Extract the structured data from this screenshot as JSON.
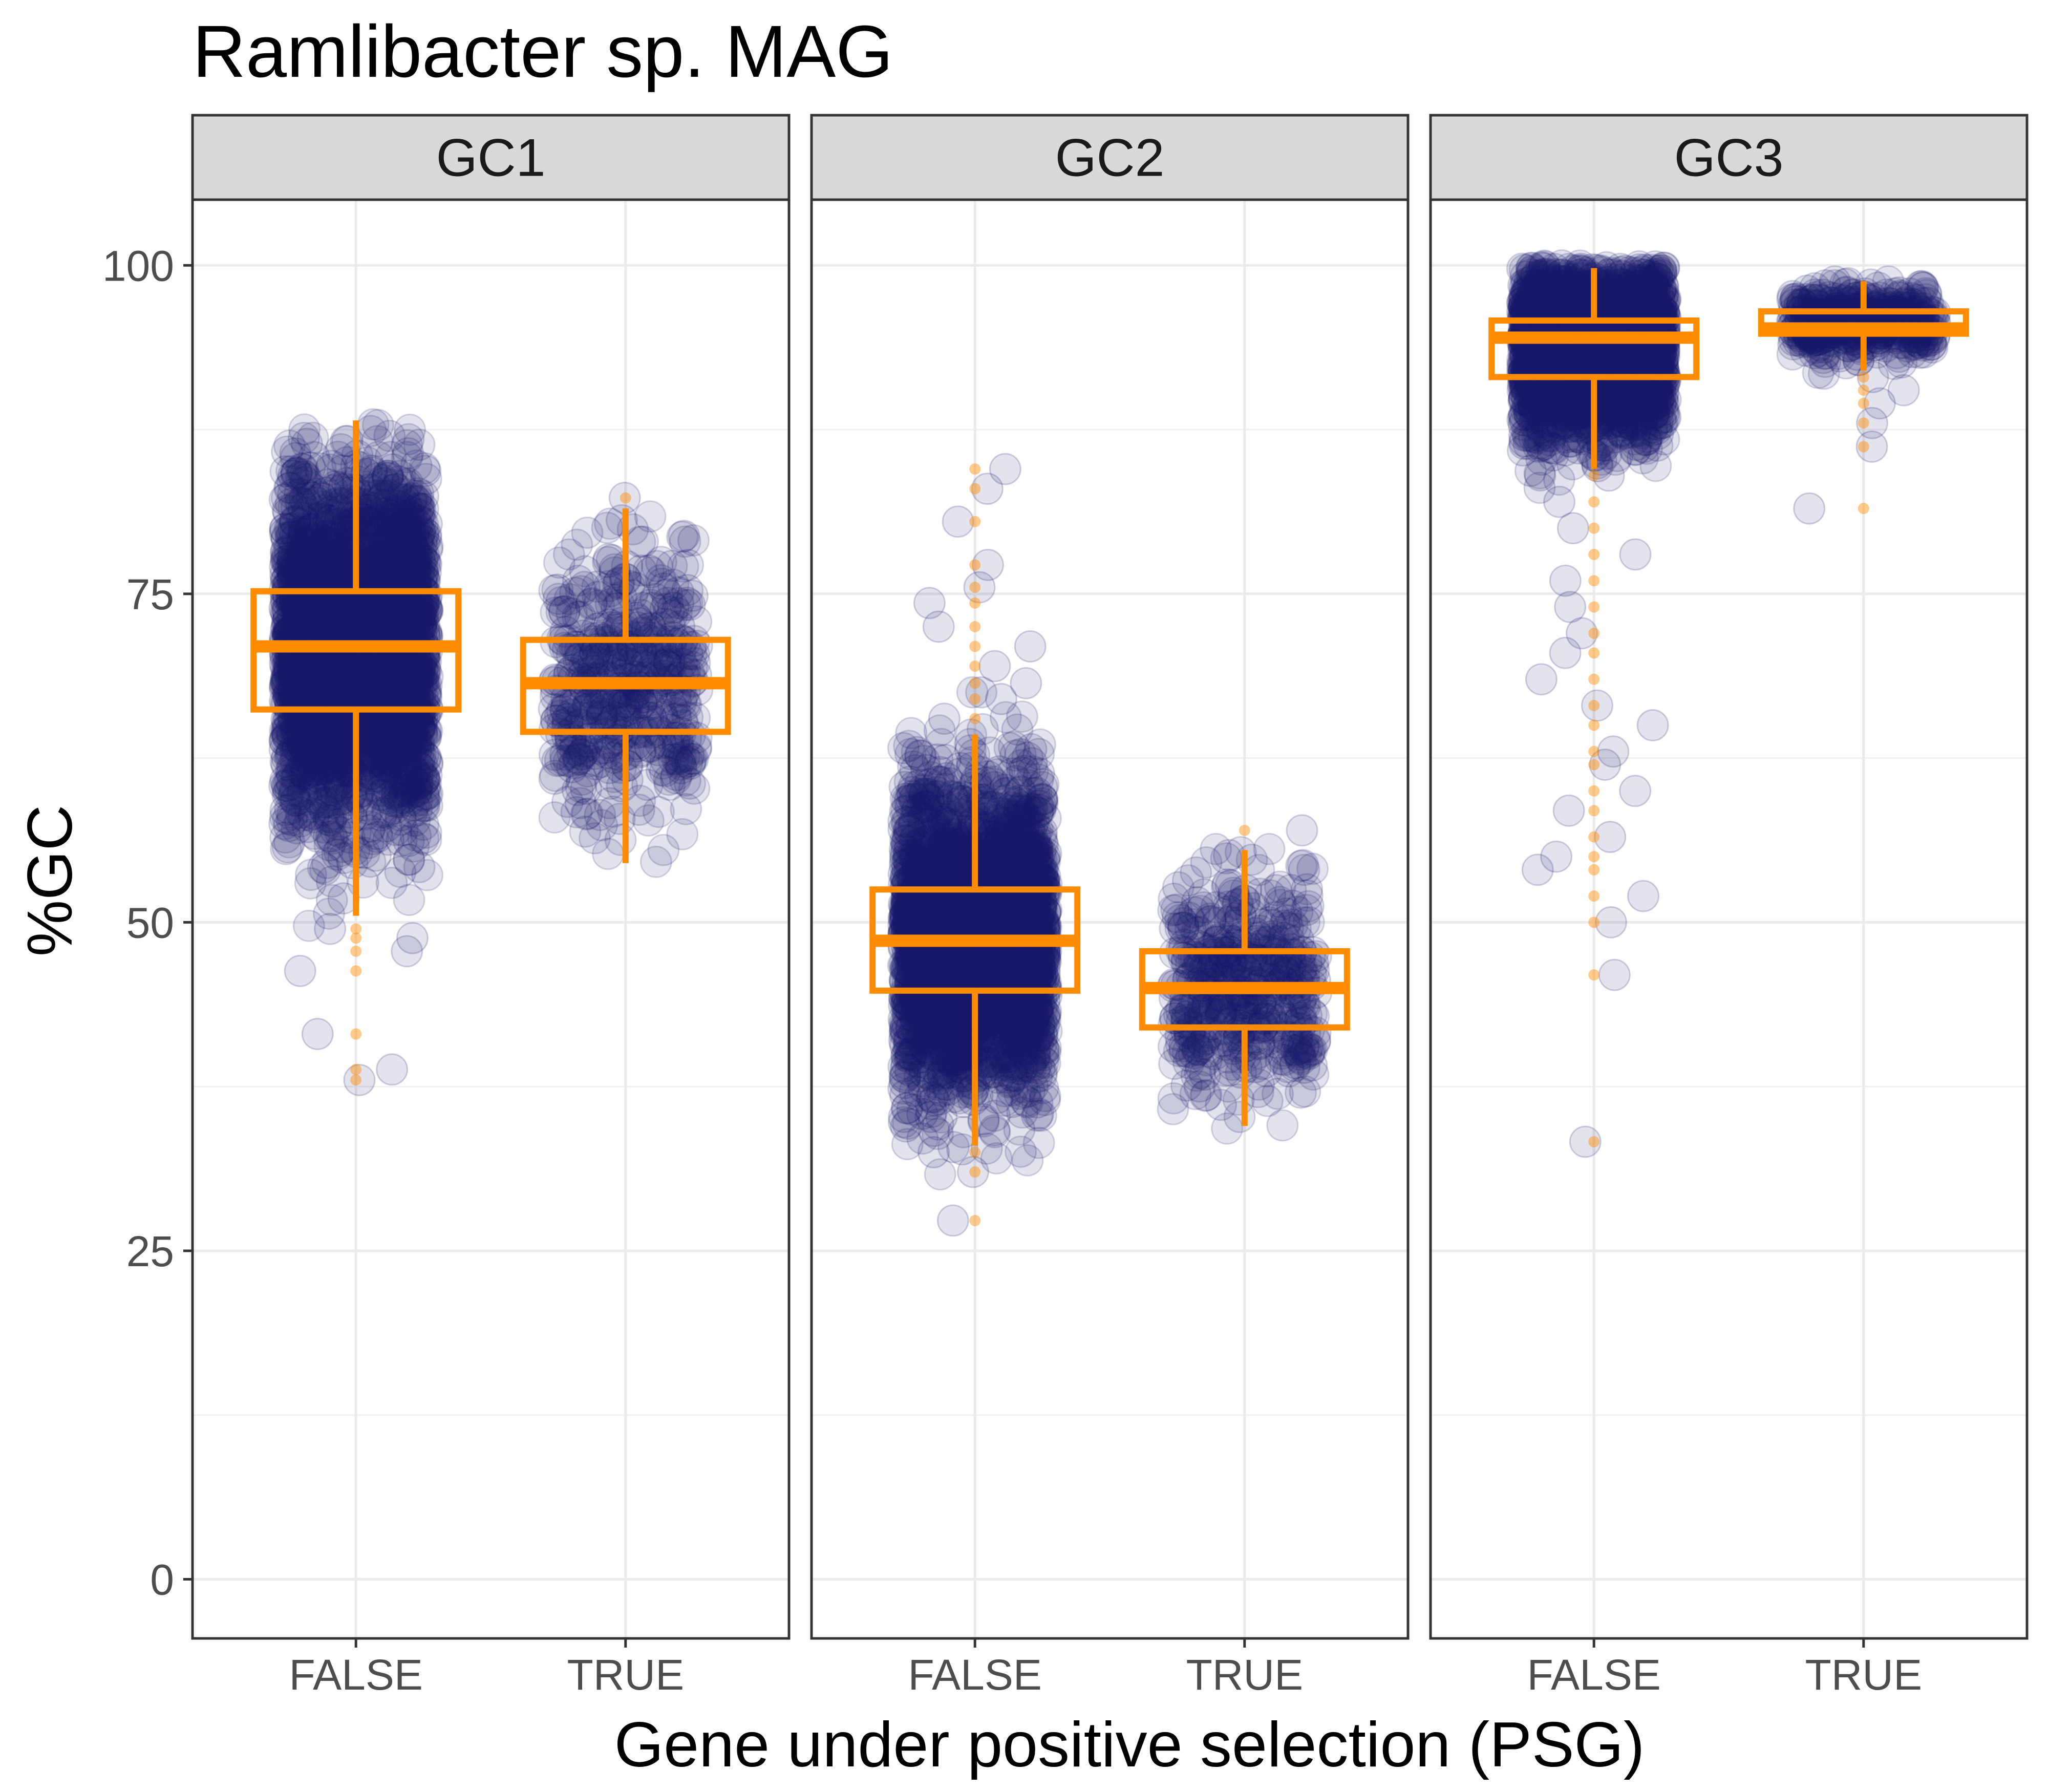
{
  "chart_data": {
    "type": "boxplot",
    "title": "Ramlibacter sp. MAG",
    "xlabel": "Gene under positive selection (PSG)",
    "ylabel": "%GC",
    "ylim": [
      -4.5,
      105
    ],
    "yticks": [
      0,
      25,
      50,
      75,
      100
    ],
    "categories": [
      "FALSE",
      "TRUE"
    ],
    "grid": true,
    "point_color": "#1a1a6e",
    "box_color": "#ff8c00",
    "panels": [
      {
        "name": "GC1",
        "groups": [
          {
            "category": "FALSE",
            "min": 50.5,
            "q1": 66.2,
            "median": 71.0,
            "q3": 75.2,
            "max": 88.2,
            "outliers": [
              49.5,
              48.8,
              47.8,
              46.3,
              41.5,
              38.8,
              38.0
            ],
            "jitter_range": [
              38,
              88
            ],
            "n": 3000
          },
          {
            "category": "TRUE",
            "min": 54.5,
            "q1": 64.5,
            "median": 68.2,
            "q3": 71.5,
            "max": 81.5,
            "outliers": [
              82.3
            ],
            "jitter_range": [
              54,
              82
            ],
            "n": 500
          }
        ]
      },
      {
        "name": "GC2",
        "groups": [
          {
            "category": "FALSE",
            "min": 33.0,
            "q1": 44.8,
            "median": 48.6,
            "q3": 52.5,
            "max": 64.3,
            "outliers": [
              84.5,
              83.0,
              80.5,
              77.2,
              75.5,
              74.3,
              72.5,
              71.0,
              69.5,
              68.2,
              67.0,
              65.5,
              32.5,
              31.0,
              27.3
            ],
            "jitter_range": [
              27,
              85
            ],
            "n": 3000
          },
          {
            "category": "TRUE",
            "min": 34.5,
            "q1": 42.0,
            "median": 45.0,
            "q3": 47.8,
            "max": 55.5,
            "outliers": [
              57.0
            ],
            "jitter_range": [
              34,
              57
            ],
            "n": 500
          }
        ]
      },
      {
        "name": "GC3",
        "groups": [
          {
            "category": "FALSE",
            "min": 84.5,
            "q1": 91.5,
            "median": 94.5,
            "q3": 95.8,
            "max": 99.8,
            "outliers": [
              84.0,
              82.0,
              80.0,
              78.0,
              76.0,
              74.0,
              72.0,
              70.5,
              68.5,
              66.5,
              65.0,
              63.0,
              62.0,
              60.0,
              58.5,
              56.5,
              55.0,
              54.0,
              52.0,
              50.0,
              46.0,
              33.3
            ],
            "jitter_range": [
              33,
              100
            ],
            "n": 3000
          },
          {
            "category": "TRUE",
            "min": 92.0,
            "q1": 94.8,
            "median": 95.2,
            "q3": 96.5,
            "max": 98.8,
            "outliers": [
              91.5,
              90.5,
              89.5,
              88.0,
              86.2,
              81.5
            ],
            "jitter_range": [
              81,
              99
            ],
            "n": 500
          }
        ]
      }
    ]
  }
}
